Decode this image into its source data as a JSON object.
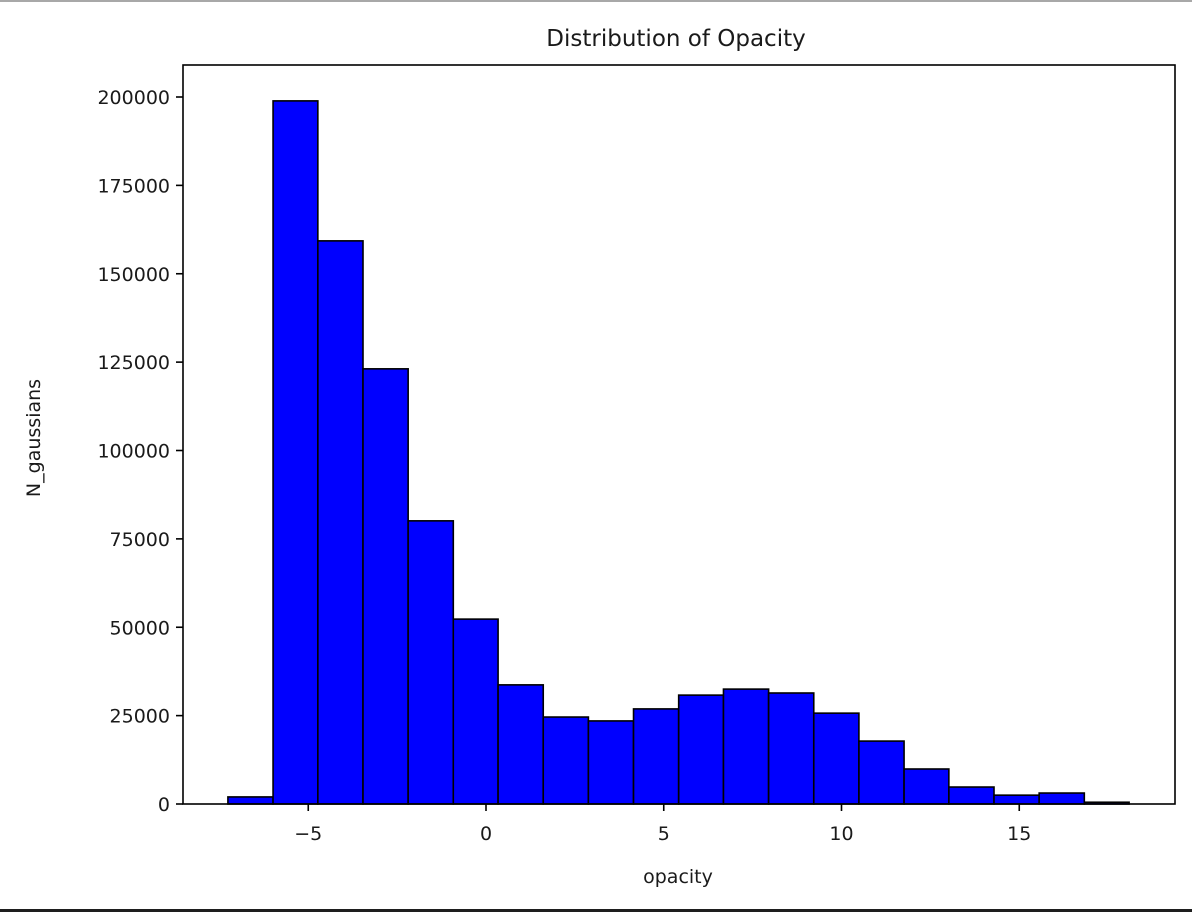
{
  "chart_data": {
    "type": "bar",
    "subtype": "histogram",
    "title": "Distribution of Opacity",
    "xlabel": "opacity",
    "ylabel": "N_gaussians",
    "bin_edges": [
      -7.26,
      -5.99,
      -4.73,
      -3.46,
      -2.19,
      -0.92,
      0.34,
      1.61,
      2.88,
      4.15,
      5.42,
      6.68,
      7.95,
      9.22,
      10.49,
      11.76,
      13.02,
      14.29,
      15.56,
      16.83,
      18.09
    ],
    "categories": [
      "-6.63",
      "-5.36",
      "-4.09",
      "-2.83",
      "-1.56",
      "-0.29",
      "0.98",
      "2.25",
      "3.51",
      "4.78",
      "6.05",
      "7.32",
      "8.59",
      "9.85",
      "11.12",
      "12.39",
      "13.66",
      "14.93",
      "16.19",
      "17.46"
    ],
    "values": [
      2000,
      198900,
      159300,
      123100,
      80100,
      52300,
      33700,
      24600,
      23500,
      26900,
      30800,
      32500,
      31400,
      25700,
      17800,
      9900,
      4800,
      2500,
      3100,
      500
    ],
    "xlim": [
      -8.5,
      19.0
    ],
    "ylim": [
      0,
      209000
    ],
    "xticks": [
      -5,
      0,
      5,
      10,
      15
    ],
    "xtick_labels": [
      "−5",
      "0",
      "5",
      "10",
      "15"
    ],
    "yticks": [
      0,
      25000,
      50000,
      75000,
      100000,
      125000,
      150000,
      175000,
      200000
    ],
    "ytick_labels": [
      "0",
      "25000",
      "50000",
      "75000",
      "100000",
      "125000",
      "150000",
      "175000",
      "200000"
    ],
    "grid": false,
    "legend": null,
    "colors": {
      "bar_fill": "#0000ff",
      "bar_edge": "#000000",
      "axis": "#000000",
      "text": "#1a1a1a",
      "background": "#ffffff"
    }
  }
}
